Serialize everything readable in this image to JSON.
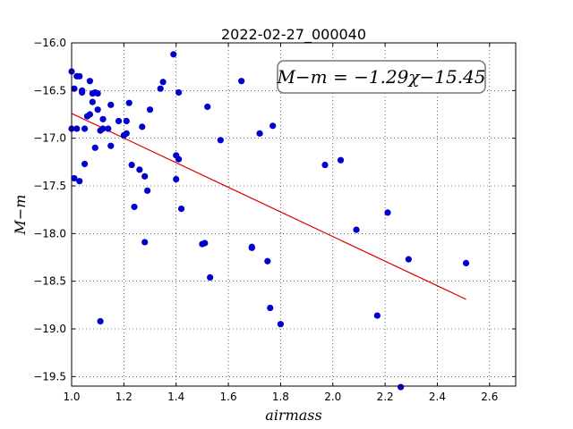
{
  "chart_data": {
    "type": "scatter",
    "title": "2022-02-27_000040",
    "xlabel": "airmass",
    "ylabel": "M−m",
    "xlim": [
      1.0,
      2.7
    ],
    "ylim": [
      -16.0,
      -19.6
    ],
    "xticks": [
      1.0,
      1.2,
      1.4,
      1.6,
      1.8,
      2.0,
      2.2,
      2.4,
      2.6
    ],
    "xtick_labels": [
      "1.0",
      "1.2",
      "1.4",
      "1.6",
      "1.8",
      "2.0",
      "2.2",
      "2.4",
      "2.6"
    ],
    "yticks": [
      -16.0,
      -16.5,
      -17.0,
      -17.5,
      -18.0,
      -18.5,
      -19.0,
      -19.5
    ],
    "ytick_labels": [
      "−16.0",
      "−16.5",
      "−17.0",
      "−17.5",
      "−18.0",
      "−18.5",
      "−19.0",
      "−19.5"
    ],
    "grid": true,
    "annotation": "M−m = −1.29χ−15.45",
    "points_color": "#0000cc",
    "fit_color": "#dd0000",
    "points": [
      [
        1.0,
        -16.3
      ],
      [
        1.0,
        -16.9
      ],
      [
        1.01,
        -16.48
      ],
      [
        1.01,
        -17.42
      ],
      [
        1.02,
        -16.35
      ],
      [
        1.02,
        -16.9
      ],
      [
        1.03,
        -16.35
      ],
      [
        1.03,
        -17.45
      ],
      [
        1.04,
        -16.52
      ],
      [
        1.04,
        -16.5
      ],
      [
        1.05,
        -17.27
      ],
      [
        1.05,
        -16.9
      ],
      [
        1.06,
        -16.77
      ],
      [
        1.07,
        -16.4
      ],
      [
        1.07,
        -16.75
      ],
      [
        1.08,
        -16.62
      ],
      [
        1.08,
        -16.53
      ],
      [
        1.09,
        -16.52
      ],
      [
        1.09,
        -17.1
      ],
      [
        1.1,
        -16.53
      ],
      [
        1.1,
        -16.7
      ],
      [
        1.11,
        -16.92
      ],
      [
        1.11,
        -18.92
      ],
      [
        1.12,
        -16.8
      ],
      [
        1.12,
        -16.9
      ],
      [
        1.14,
        -16.9
      ],
      [
        1.15,
        -16.65
      ],
      [
        1.15,
        -17.08
      ],
      [
        1.18,
        -16.82
      ],
      [
        1.2,
        -16.97
      ],
      [
        1.21,
        -16.82
      ],
      [
        1.21,
        -16.95
      ],
      [
        1.22,
        -16.63
      ],
      [
        1.23,
        -17.28
      ],
      [
        1.24,
        -17.72
      ],
      [
        1.26,
        -17.33
      ],
      [
        1.27,
        -16.88
      ],
      [
        1.28,
        -17.4
      ],
      [
        1.28,
        -18.09
      ],
      [
        1.29,
        -17.55
      ],
      [
        1.3,
        -16.7
      ],
      [
        1.34,
        -16.48
      ],
      [
        1.35,
        -16.41
      ],
      [
        1.39,
        -16.12
      ],
      [
        1.4,
        -17.18
      ],
      [
        1.4,
        -17.43
      ],
      [
        1.41,
        -17.22
      ],
      [
        1.41,
        -16.52
      ],
      [
        1.42,
        -17.74
      ],
      [
        1.5,
        -18.11
      ],
      [
        1.51,
        -18.1
      ],
      [
        1.52,
        -16.67
      ],
      [
        1.53,
        -18.46
      ],
      [
        1.57,
        -17.02
      ],
      [
        1.65,
        -16.4
      ],
      [
        1.69,
        -18.14
      ],
      [
        1.69,
        -18.15
      ],
      [
        1.72,
        -16.95
      ],
      [
        1.75,
        -18.29
      ],
      [
        1.76,
        -18.78
      ],
      [
        1.77,
        -16.87
      ],
      [
        1.8,
        -18.95
      ],
      [
        1.97,
        -17.28
      ],
      [
        2.03,
        -17.23
      ],
      [
        2.09,
        -17.96
      ],
      [
        2.17,
        -18.86
      ],
      [
        2.21,
        -17.78
      ],
      [
        2.26,
        -19.61
      ],
      [
        2.29,
        -18.27
      ],
      [
        2.51,
        -18.31
      ]
    ],
    "fit_line": {
      "x": [
        1.0,
        2.51
      ],
      "y": [
        -16.74,
        -18.69
      ]
    }
  }
}
